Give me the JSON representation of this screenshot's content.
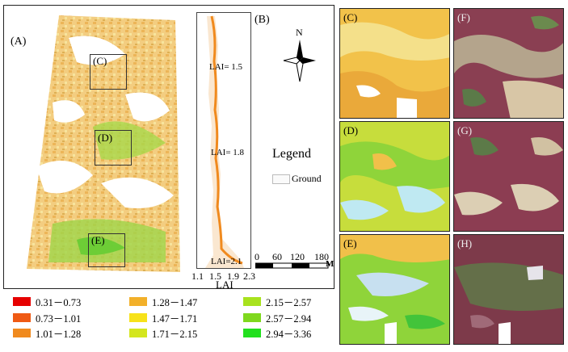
{
  "panel_a": {
    "label": "(A)",
    "insets": [
      "(C)",
      "(D)",
      "(E)"
    ]
  },
  "panel_b": {
    "label": "(B)",
    "annotations": [
      "LAI= 1.5",
      "LAI= 1.8",
      "LAI=2.1"
    ],
    "x_ticks": [
      "1.1",
      "1.5",
      "1.9",
      "2.3"
    ],
    "x_label": "LAI"
  },
  "north": {
    "letter": "N"
  },
  "map_legend": {
    "title": "Legend",
    "ground_label": "Ground"
  },
  "scale_bar": {
    "ticks": [
      "0",
      "60",
      "120",
      "180"
    ],
    "unit": "M"
  },
  "lai_legend": [
    {
      "range": "0.31－0.73",
      "color": "#e60000"
    },
    {
      "range": "0.73－1.01",
      "color": "#ef5a14"
    },
    {
      "range": "1.01－1.28",
      "color": "#f08a1e"
    },
    {
      "range": "1.28－1.47",
      "color": "#f2b02a"
    },
    {
      "range": "1.47－1.71",
      "color": "#f7e21a"
    },
    {
      "range": "1.71－2.15",
      "color": "#d4e61e"
    },
    {
      "range": "2.15－2.57",
      "color": "#a8e21e"
    },
    {
      "range": "2.57－2.94",
      "color": "#7fd81e"
    },
    {
      "range": "2.94－3.36",
      "color": "#22e01e"
    }
  ],
  "right_panels": {
    "lai_maps": [
      "(C)",
      "(D)",
      "(E)"
    ],
    "rgb_images": [
      "(F)",
      "(G)",
      "(H)"
    ]
  }
}
